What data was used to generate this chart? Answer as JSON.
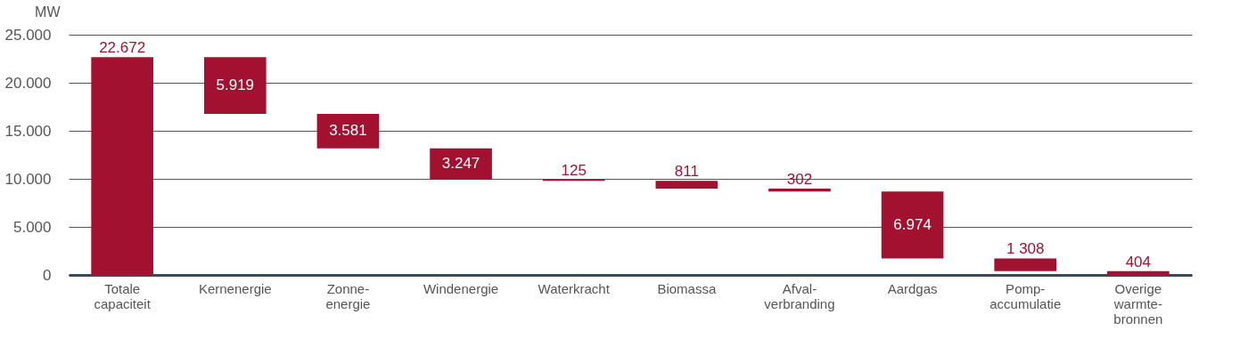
{
  "chart_data": {
    "type": "bar",
    "ylabel": "MW",
    "categories": [
      "Totale capaciteit",
      "Kernenergie",
      "Zonne-energie",
      "Windenergie",
      "Waterkracht",
      "Biomassa",
      "Afval-verbranding",
      "Aardgas",
      "Pomp-accumulatie",
      "Overige warmte-bronnen"
    ],
    "values": [
      22672,
      5919,
      3581,
      3247,
      125,
      811,
      302,
      6974,
      1308,
      404
    ],
    "base": [
      0,
      16753,
      13172,
      9925,
      9800,
      8989,
      8687,
      1713,
      405,
      1
    ],
    "value_labels": [
      "22.672",
      "5.919",
      "3.581",
      "3.247",
      "125",
      "811",
      "302",
      "6.974",
      "1 308",
      "404"
    ],
    "color": "#a31130",
    "ylim": [
      0,
      25000
    ],
    "yticks": [
      {
        "value": 0,
        "label": "0"
      },
      {
        "value": 5000,
        "label": "5.000"
      },
      {
        "value": 10000,
        "label": "10.000"
      },
      {
        "value": 15000,
        "label": "15.000"
      },
      {
        "value": 20000,
        "label": "20.000"
      },
      {
        "value": 25000,
        "label": "25.000"
      }
    ],
    "grid": "y"
  }
}
